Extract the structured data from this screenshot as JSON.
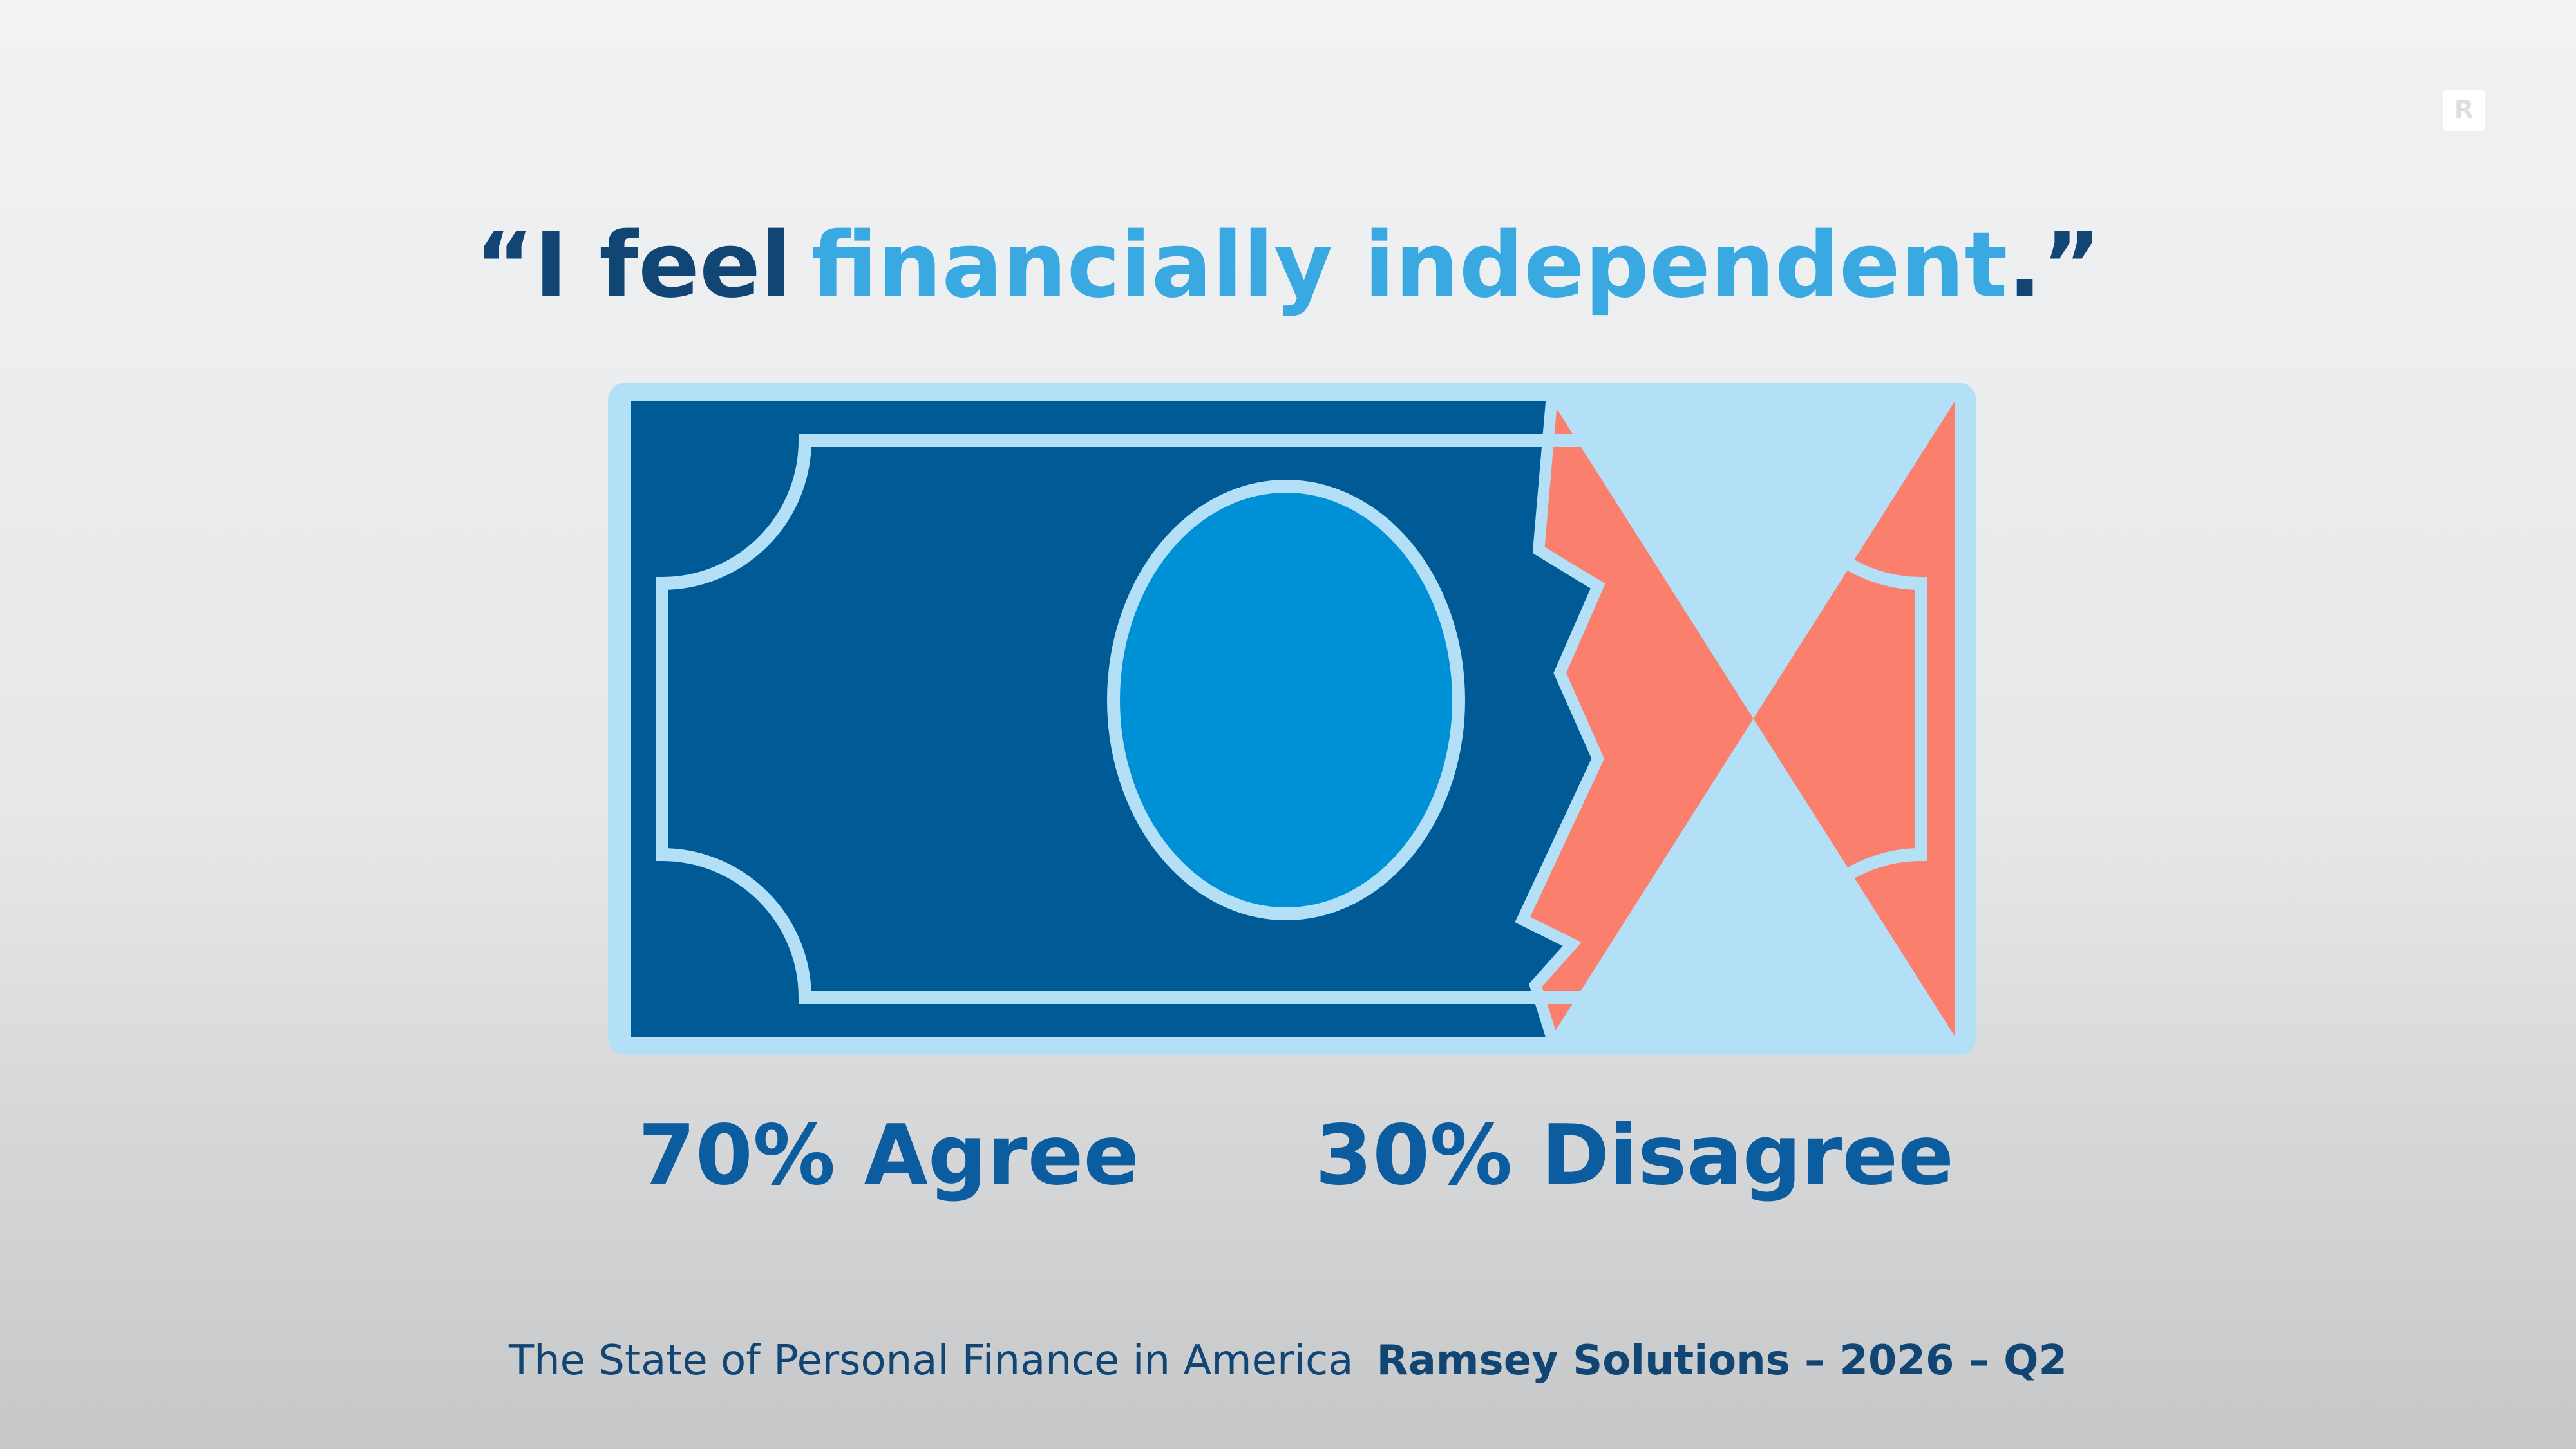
{
  "chart_data": {
    "type": "bill",
    "title_parts": [
      "“I feel",
      "financially independent",
      ".”"
    ],
    "values": [
      70,
      30
    ],
    "value_labels": [
      "70% Agree",
      "30% Disagree"
    ],
    "colors": [
      "#005a96",
      "#fa7f6c"
    ],
    "source": "The State of Personal Finance in America",
    "credit": "Ramsey Solutions – 2026 – Q2",
    "logo": "R"
  }
}
